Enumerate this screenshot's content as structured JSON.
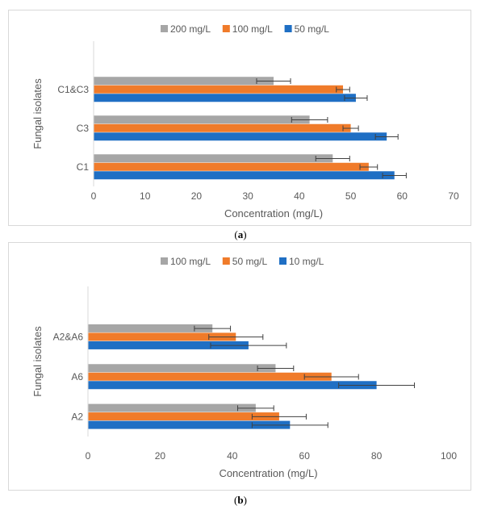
{
  "chart_data": [
    {
      "type": "bar",
      "orientation": "horizontal",
      "panel_label": "a",
      "categories": [
        "C1",
        "C3",
        "C1&C3"
      ],
      "series": [
        {
          "name": "50 mg/L",
          "color": "#1f6fc4",
          "values": [
            58.5,
            57.0,
            51.0
          ],
          "errors": [
            2.3,
            2.2,
            2.2
          ]
        },
        {
          "name": "100 mg/L",
          "color": "#f07b2a",
          "values": [
            53.5,
            50.0,
            48.5
          ],
          "errors": [
            1.7,
            1.5,
            1.3
          ]
        },
        {
          "name": "200 mg/L",
          "color": "#a6a6a6",
          "values": [
            46.5,
            42.0,
            35.0
          ],
          "errors": [
            3.3,
            3.5,
            3.3
          ]
        }
      ],
      "legend_order": [
        "200 mg/L",
        "100 mg/L",
        "50 mg/L"
      ],
      "xlabel": "Concentration (mg/L)",
      "ylabel": "Fungal isolates",
      "xlim": [
        0,
        70
      ],
      "xticks": [
        0,
        10,
        20,
        30,
        40,
        50,
        60,
        70
      ],
      "legend_position": "top",
      "grid": false
    },
    {
      "type": "bar",
      "orientation": "horizontal",
      "panel_label": "b",
      "categories": [
        "A2",
        "A6",
        "A2&A6"
      ],
      "series": [
        {
          "name": "10 mg/L",
          "color": "#1f6fc4",
          "values": [
            56.0,
            80.0,
            44.5
          ],
          "errors": [
            10.5,
            10.5,
            10.5
          ]
        },
        {
          "name": "50 mg/L",
          "color": "#f07b2a",
          "values": [
            53.0,
            67.5,
            41.0
          ],
          "errors": [
            7.5,
            7.5,
            7.5
          ]
        },
        {
          "name": "100 mg/L",
          "color": "#a6a6a6",
          "values": [
            46.5,
            52.0,
            34.5
          ],
          "errors": [
            5.0,
            5.0,
            5.0
          ]
        }
      ],
      "legend_order": [
        "100 mg/L",
        "50 mg/L",
        "10 mg/L"
      ],
      "xlabel": "Concentration (mg/L)",
      "ylabel": "Fungal isolates",
      "xlim": [
        0,
        100
      ],
      "xticks": [
        0,
        20,
        40,
        60,
        80,
        100
      ],
      "legend_position": "top",
      "grid": false
    }
  ]
}
